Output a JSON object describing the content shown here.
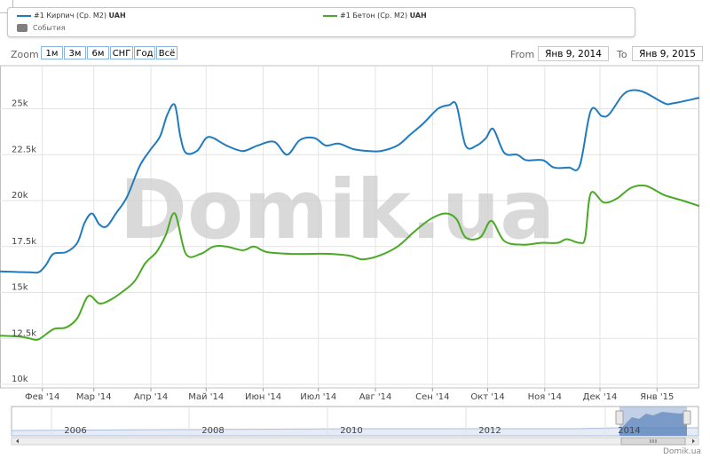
{
  "legend": {
    "series1": {
      "name": "#1 Кирпич (Ср. М2)",
      "unit": "UAH",
      "color": "#1f7bc0"
    },
    "series2": {
      "name": "#1 Бетон (Ср. М2)",
      "unit": "UAH",
      "color": "#4aaa25"
    },
    "events": "События"
  },
  "zoom": {
    "label": "Zoom",
    "buttons": [
      "1м",
      "3м",
      "6м",
      "СНГ",
      "Год",
      "Всё"
    ]
  },
  "range": {
    "from_label": "From",
    "from_value": "Янв 9, 2014",
    "to_label": "To",
    "to_value": "Янв 9, 2015"
  },
  "watermark": "Domik.ua",
  "credit": "Domik.ua",
  "navigator": {
    "year_labels": [
      "2006",
      "2008",
      "2010",
      "2012",
      "2014"
    ]
  },
  "chart_data": {
    "type": "line",
    "y_tick_labels": [
      "10k",
      "12.5k",
      "15k",
      "17.5k",
      "20k",
      "22.5k",
      "25k"
    ],
    "x_tick_labels": [
      "Фев '14",
      "Мар '14",
      "Апр '14",
      "Май '14",
      "Июн '14",
      "Июл '14",
      "Авг '14",
      "Сен '14",
      "Окт '14",
      "Ноя '14",
      "Дек '14",
      "Янв '15"
    ],
    "ylim": [
      10000,
      27000
    ],
    "grid": true,
    "series": [
      {
        "name": "#1 Кирпич (Ср. М2)",
        "color": "#1f7bc0",
        "points": [
          [
            "2014-01-09",
            16150
          ],
          [
            "2014-01-25",
            16100
          ],
          [
            "2014-01-30",
            16100
          ],
          [
            "2014-02-03",
            16500
          ],
          [
            "2014-02-07",
            17100
          ],
          [
            "2014-02-14",
            17200
          ],
          [
            "2014-02-20",
            17700
          ],
          [
            "2014-02-24",
            18800
          ],
          [
            "2014-02-28",
            19300
          ],
          [
            "2014-03-04",
            18700
          ],
          [
            "2014-03-08",
            18600
          ],
          [
            "2014-03-13",
            19300
          ],
          [
            "2014-03-19",
            20200
          ],
          [
            "2014-03-26",
            21900
          ],
          [
            "2014-04-01",
            22800
          ],
          [
            "2014-04-06",
            23500
          ],
          [
            "2014-04-10",
            24700
          ],
          [
            "2014-04-14",
            25200
          ],
          [
            "2014-04-17",
            23500
          ],
          [
            "2014-04-20",
            22600
          ],
          [
            "2014-04-26",
            22700
          ],
          [
            "2014-05-01",
            23400
          ],
          [
            "2014-05-05",
            23400
          ],
          [
            "2014-05-12",
            23000
          ],
          [
            "2014-05-21",
            22700
          ],
          [
            "2014-05-29",
            23000
          ],
          [
            "2014-06-07",
            23200
          ],
          [
            "2014-06-14",
            22500
          ],
          [
            "2014-06-21",
            23300
          ],
          [
            "2014-06-29",
            23400
          ],
          [
            "2014-07-05",
            23000
          ],
          [
            "2014-07-12",
            23100
          ],
          [
            "2014-07-20",
            22800
          ],
          [
            "2014-07-28",
            22700
          ],
          [
            "2014-08-04",
            22700
          ],
          [
            "2014-08-13",
            23000
          ],
          [
            "2014-08-20",
            23600
          ],
          [
            "2014-08-27",
            24200
          ],
          [
            "2014-09-04",
            25000
          ],
          [
            "2014-09-10",
            25200
          ],
          [
            "2014-09-14",
            25200
          ],
          [
            "2014-09-19",
            23000
          ],
          [
            "2014-09-25",
            23000
          ],
          [
            "2014-09-30",
            23400
          ],
          [
            "2014-10-04",
            23900
          ],
          [
            "2014-10-10",
            22600
          ],
          [
            "2014-10-17",
            22500
          ],
          [
            "2014-10-22",
            22200
          ],
          [
            "2014-10-31",
            22200
          ],
          [
            "2014-11-06",
            21800
          ],
          [
            "2014-11-14",
            21800
          ],
          [
            "2014-11-20",
            21900
          ],
          [
            "2014-11-26",
            24900
          ],
          [
            "2014-12-02",
            24600
          ],
          [
            "2014-12-06",
            24700
          ],
          [
            "2014-12-13",
            25700
          ],
          [
            "2014-12-18",
            26000
          ],
          [
            "2014-12-25",
            25900
          ],
          [
            "2015-01-05",
            25300
          ],
          [
            "2015-01-10",
            25300
          ],
          [
            "2015-01-24",
            25600
          ]
        ]
      },
      {
        "name": "#1 Бетон (Ср. М2)",
        "color": "#4aaa25",
        "points": [
          [
            "2014-01-09",
            12650
          ],
          [
            "2014-01-20",
            12600
          ],
          [
            "2014-01-25",
            12500
          ],
          [
            "2014-01-30",
            12450
          ],
          [
            "2014-02-07",
            13000
          ],
          [
            "2014-02-14",
            13100
          ],
          [
            "2014-02-20",
            13600
          ],
          [
            "2014-02-26",
            14800
          ],
          [
            "2014-03-04",
            14400
          ],
          [
            "2014-03-10",
            14600
          ],
          [
            "2014-03-16",
            15000
          ],
          [
            "2014-03-23",
            15600
          ],
          [
            "2014-03-29",
            16600
          ],
          [
            "2014-04-04",
            17200
          ],
          [
            "2014-04-09",
            18100
          ],
          [
            "2014-04-14",
            19300
          ],
          [
            "2014-04-20",
            17100
          ],
          [
            "2014-04-28",
            17100
          ],
          [
            "2014-05-05",
            17500
          ],
          [
            "2014-05-12",
            17500
          ],
          [
            "2014-05-21",
            17300
          ],
          [
            "2014-05-27",
            17500
          ],
          [
            "2014-06-03",
            17200
          ],
          [
            "2014-06-16",
            17100
          ],
          [
            "2014-06-28",
            17100
          ],
          [
            "2014-07-07",
            17100
          ],
          [
            "2014-07-18",
            17000
          ],
          [
            "2014-07-25",
            16800
          ],
          [
            "2014-08-03",
            17000
          ],
          [
            "2014-08-13",
            17500
          ],
          [
            "2014-08-22",
            18300
          ],
          [
            "2014-08-31",
            19000
          ],
          [
            "2014-09-08",
            19300
          ],
          [
            "2014-09-14",
            19000
          ],
          [
            "2014-09-19",
            18000
          ],
          [
            "2014-09-27",
            18000
          ],
          [
            "2014-10-03",
            18900
          ],
          [
            "2014-10-10",
            17800
          ],
          [
            "2014-10-20",
            17600
          ],
          [
            "2014-10-30",
            17700
          ],
          [
            "2014-11-08",
            17700
          ],
          [
            "2014-11-13",
            17900
          ],
          [
            "2014-11-20",
            17700
          ],
          [
            "2014-11-23",
            18000
          ],
          [
            "2014-11-26",
            20400
          ],
          [
            "2014-12-03",
            19900
          ],
          [
            "2014-12-10",
            20100
          ],
          [
            "2014-12-18",
            20700
          ],
          [
            "2014-12-26",
            20800
          ],
          [
            "2015-01-05",
            20300
          ],
          [
            "2015-01-15",
            20000
          ],
          [
            "2015-01-24",
            19700
          ]
        ]
      }
    ]
  }
}
